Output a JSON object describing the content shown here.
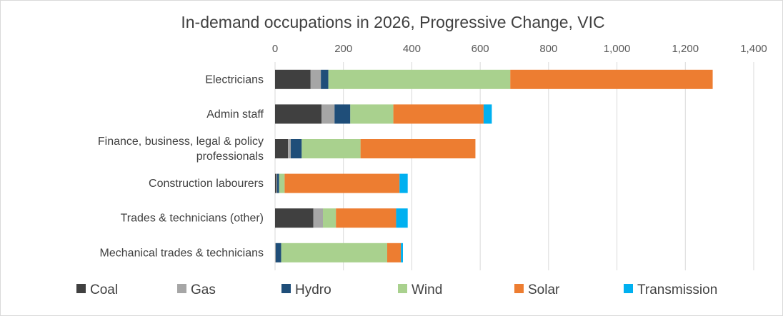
{
  "chart_data": {
    "type": "bar",
    "orientation": "horizontal",
    "stacked": true,
    "title": "In-demand occupations in 2026, Progressive Change, VIC",
    "xlabel": "",
    "ylabel": "",
    "xlim": [
      0,
      1400
    ],
    "x_ticks": [
      0,
      200,
      400,
      600,
      800,
      1000,
      1200,
      1400
    ],
    "x_tick_labels": [
      "0",
      "200",
      "400",
      "600",
      "800",
      "1,000",
      "1,200",
      "1,400"
    ],
    "x_axis_position": "top",
    "grid": "vertical",
    "legend_position": "bottom",
    "categories": [
      [
        "Electricians"
      ],
      [
        "Admin staff"
      ],
      [
        "Finance, business, legal & policy",
        "professionals"
      ],
      [
        "Construction labourers"
      ],
      [
        "Trades & technicians (other)"
      ],
      [
        "Mechanical trades & technicians"
      ]
    ],
    "series": [
      {
        "name": "Coal",
        "color": "#404040",
        "values": [
          104,
          136,
          38,
          4,
          112,
          0
        ]
      },
      {
        "name": "Gas",
        "color": "#a6a6a6",
        "values": [
          30,
          38,
          8,
          2,
          28,
          2
        ]
      },
      {
        "name": "Hydro",
        "color": "#1f4e79",
        "values": [
          22,
          46,
          32,
          6,
          0,
          16
        ]
      },
      {
        "name": "Wind",
        "color": "#a9d18e",
        "values": [
          532,
          126,
          172,
          16,
          38,
          310
        ]
      },
      {
        "name": "Solar",
        "color": "#ed7d31",
        "values": [
          592,
          264,
          336,
          336,
          176,
          40
        ]
      },
      {
        "name": "Transmission",
        "color": "#00b0f0",
        "values": [
          0,
          24,
          0,
          24,
          34,
          6
        ]
      }
    ]
  }
}
